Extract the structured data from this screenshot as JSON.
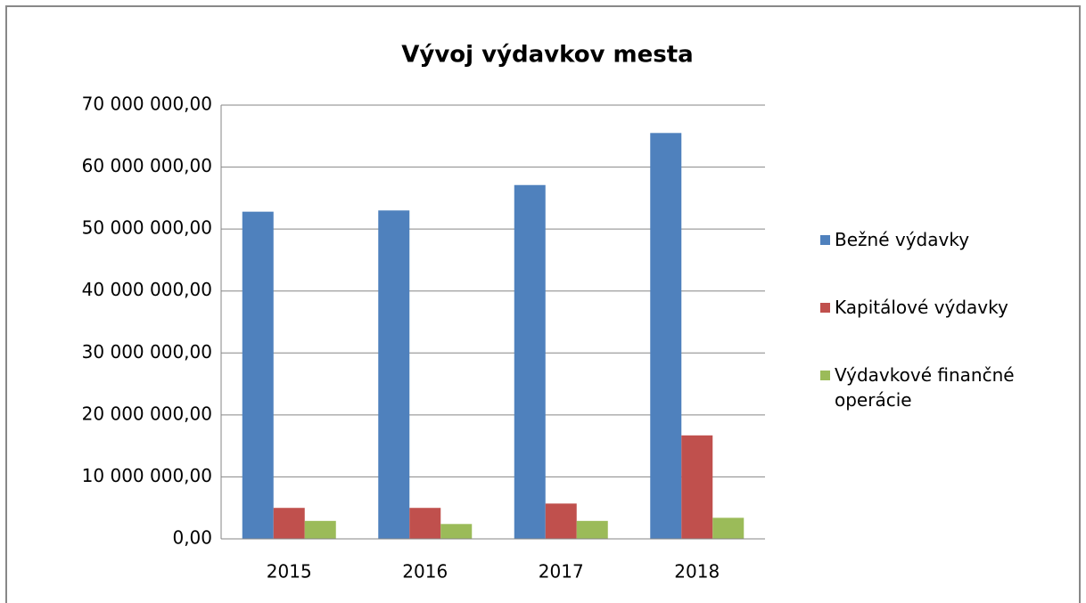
{
  "chart_data": {
    "type": "bar",
    "title": "Vývoj výdavkov mesta",
    "categories": [
      "2015",
      "2016",
      "2017",
      "2018"
    ],
    "series": [
      {
        "name": "Bežné výdavky",
        "color": "#4f81bd",
        "values": [
          52800000,
          53000000,
          57100000,
          65500000
        ]
      },
      {
        "name": "Kapitálové výdavky",
        "color": "#c0504d",
        "values": [
          5000000,
          5000000,
          5700000,
          16700000
        ]
      },
      {
        "name": "Výdavkové finančné operácie",
        "color": "#9bbb59",
        "values": [
          2900000,
          2400000,
          2900000,
          3400000
        ]
      }
    ],
    "ylim": [
      0,
      70000000
    ],
    "yticks": [
      {
        "value": 0,
        "label": "0,00"
      },
      {
        "value": 10000000,
        "label": "10 000 000,00"
      },
      {
        "value": 20000000,
        "label": "20 000 000,00"
      },
      {
        "value": 30000000,
        "label": "30 000 000,00"
      },
      {
        "value": 40000000,
        "label": "40 000 000,00"
      },
      {
        "value": 50000000,
        "label": "50 000 000,00"
      },
      {
        "value": 60000000,
        "label": "60 000 000,00"
      },
      {
        "value": 70000000,
        "label": "70 000 000,00"
      }
    ],
    "grid": true,
    "legend": "right"
  }
}
